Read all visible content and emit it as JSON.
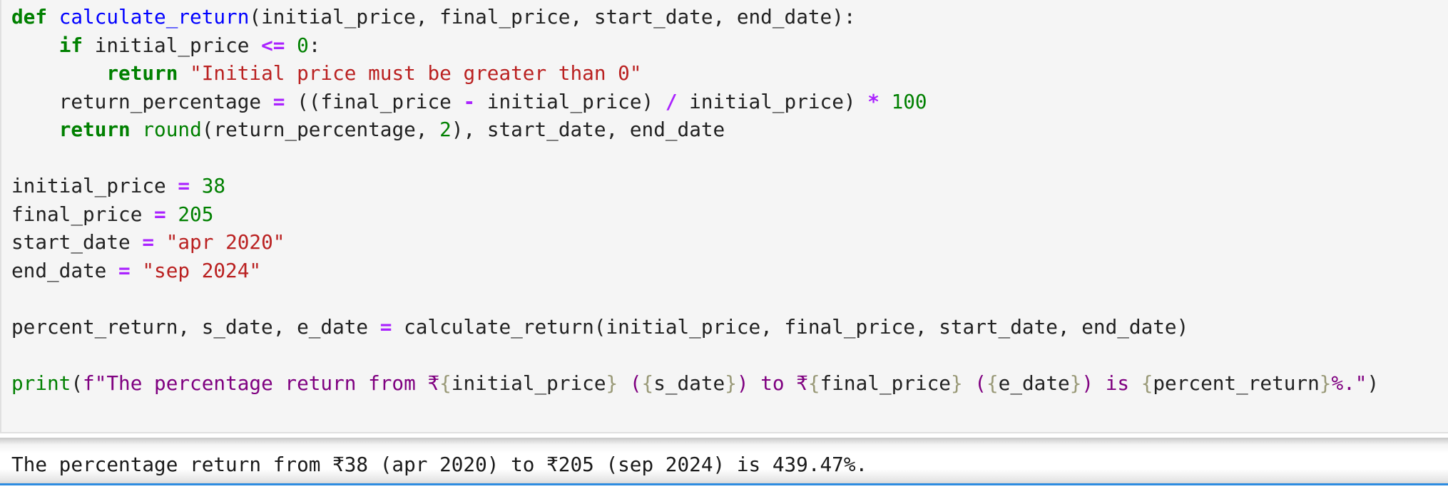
{
  "code_cell": {
    "lines": [
      [
        [
          "def",
          "kw"
        ],
        [
          " ",
          ""
        ],
        [
          "calculate_return",
          "def"
        ],
        [
          "(initial_price, final_price, start_date, end_date):",
          "var"
        ]
      ],
      [
        [
          "    ",
          ""
        ],
        [
          "if",
          "kw"
        ],
        [
          " initial_price ",
          "var"
        ],
        [
          "<=",
          "op"
        ],
        [
          " ",
          ""
        ],
        [
          "0",
          "num"
        ],
        [
          ":",
          "var"
        ]
      ],
      [
        [
          "        ",
          ""
        ],
        [
          "return",
          "kw"
        ],
        [
          " ",
          ""
        ],
        [
          "\"Initial price must be greater than 0\"",
          "str"
        ]
      ],
      [
        [
          "    return_percentage ",
          "var"
        ],
        [
          "=",
          "op"
        ],
        [
          " ((final_price ",
          "var"
        ],
        [
          "-",
          "op"
        ],
        [
          " initial_price) ",
          "var"
        ],
        [
          "/",
          "op"
        ],
        [
          " initial_price) ",
          "var"
        ],
        [
          "*",
          "op"
        ],
        [
          " ",
          ""
        ],
        [
          "100",
          "num"
        ]
      ],
      [
        [
          "    ",
          ""
        ],
        [
          "return",
          "kw"
        ],
        [
          " ",
          ""
        ],
        [
          "round",
          "bi"
        ],
        [
          "(return_percentage, ",
          "var"
        ],
        [
          "2",
          "num"
        ],
        [
          "), start_date, end_date",
          "var"
        ]
      ],
      [],
      [
        [
          "initial_price ",
          "var"
        ],
        [
          "=",
          "op"
        ],
        [
          " ",
          ""
        ],
        [
          "38",
          "num"
        ]
      ],
      [
        [
          "final_price ",
          "var"
        ],
        [
          "=",
          "op"
        ],
        [
          " ",
          ""
        ],
        [
          "205",
          "num"
        ]
      ],
      [
        [
          "start_date ",
          "var"
        ],
        [
          "=",
          "op"
        ],
        [
          " ",
          ""
        ],
        [
          "\"apr 2020\"",
          "str"
        ]
      ],
      [
        [
          "end_date ",
          "var"
        ],
        [
          "=",
          "op"
        ],
        [
          " ",
          ""
        ],
        [
          "\"sep 2024\"",
          "str"
        ]
      ],
      [],
      [
        [
          "percent_return, s_date, e_date ",
          "var"
        ],
        [
          "=",
          "op"
        ],
        [
          " calculate_return(initial_price, final_price, start_date, end_date)",
          "var"
        ]
      ],
      [],
      [
        [
          "print",
          "bi"
        ],
        [
          "(",
          "var"
        ],
        [
          "f\"The percentage return from ₹",
          "fs"
        ],
        [
          "{",
          "br"
        ],
        [
          "initial_price",
          "var"
        ],
        [
          "}",
          "br"
        ],
        [
          " (",
          "fs"
        ],
        [
          "{",
          "br"
        ],
        [
          "s_date",
          "var"
        ],
        [
          "}",
          "br"
        ],
        [
          ") to ₹",
          "fs"
        ],
        [
          "{",
          "br"
        ],
        [
          "final_price",
          "var"
        ],
        [
          "}",
          "br"
        ],
        [
          " (",
          "fs"
        ],
        [
          "{",
          "br"
        ],
        [
          "e_date",
          "var"
        ],
        [
          "}",
          "br"
        ],
        [
          ") is ",
          "fs"
        ],
        [
          "{",
          "br"
        ],
        [
          "percent_return",
          "var"
        ],
        [
          "}",
          "br"
        ],
        [
          "%.\"",
          "fs"
        ],
        [
          ")",
          "var"
        ]
      ]
    ]
  },
  "output": {
    "text": "The percentage return from ₹38 (apr 2020) to ₹205 (sep 2024) is 439.47%."
  },
  "colors": {
    "keyword": "#008000",
    "function": "#0000ff",
    "string": "#ba2121",
    "operator": "#aa22ff",
    "fstring": "#7f0080",
    "accent_line": "#2d8ce0"
  }
}
